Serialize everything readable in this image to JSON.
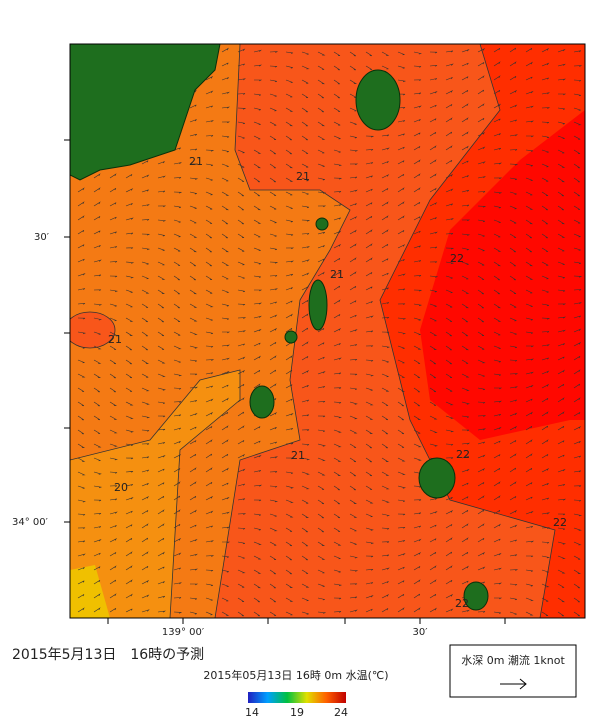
{
  "map": {
    "caption": "2015年5月13日　16時の予測",
    "subtitle": "2015年05月13日 16時 0m 水温(℃)",
    "y_axis_labels": [
      "30′",
      "34° 00′"
    ],
    "x_axis_labels": [
      "139° 00′",
      "30′"
    ],
    "contour_labels": [
      "21",
      "21",
      "21",
      "21",
      "21",
      "20",
      "22",
      "22",
      "22",
      "22"
    ],
    "colorbar_ticks": [
      "14",
      "19",
      "24"
    ],
    "legend": "水深 0m 潮流 1knot"
  }
}
